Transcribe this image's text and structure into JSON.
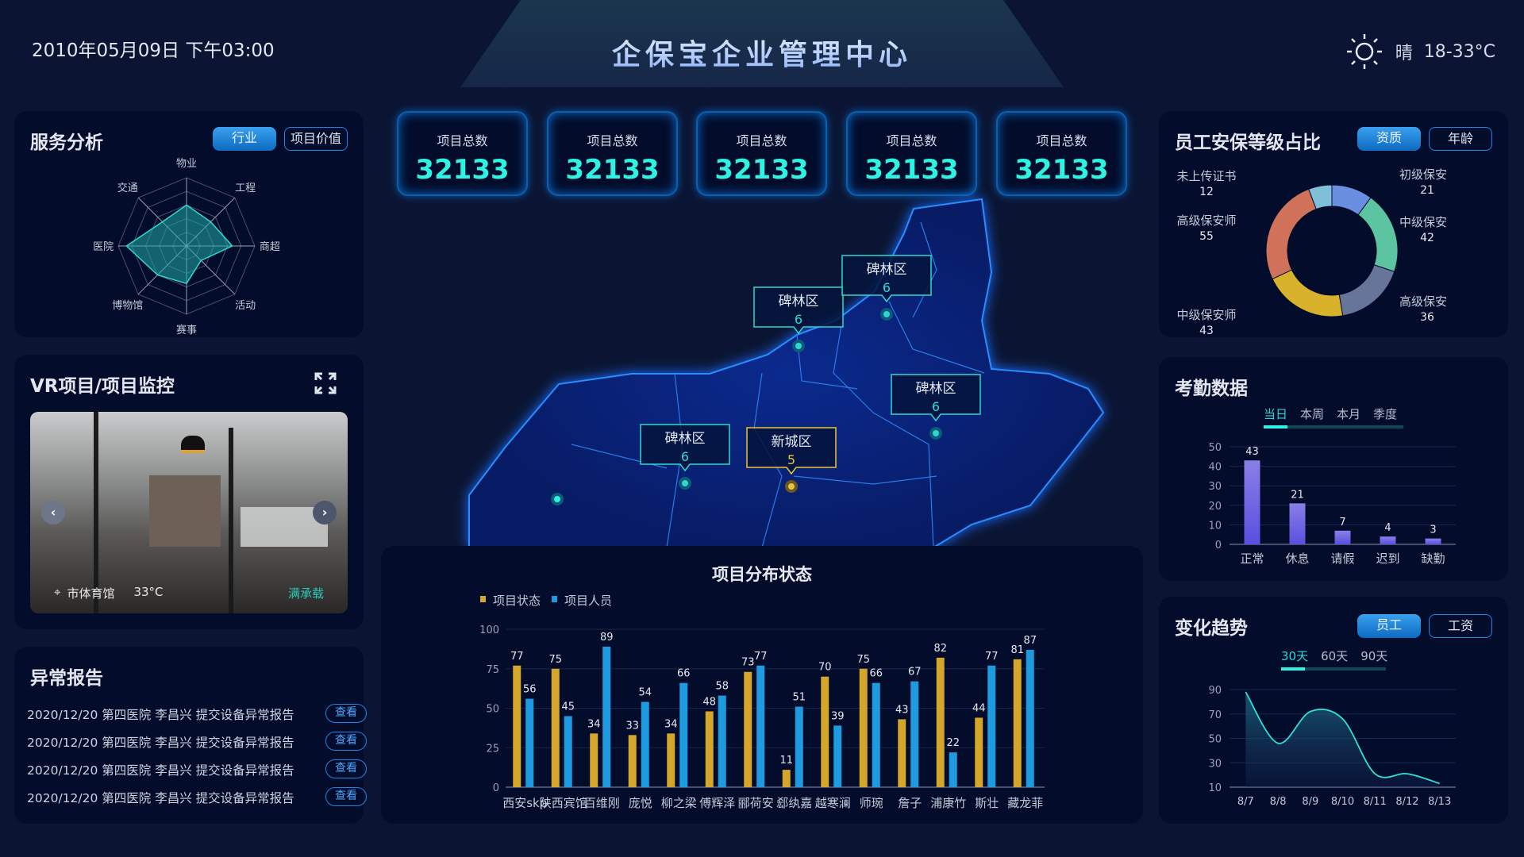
{
  "header": {
    "datetime": "2010年05月09日   下午03:00",
    "title": "企保宝企业管理中心",
    "weather": {
      "icon": "sun-icon",
      "condition": "晴",
      "temp": "18-33°C"
    }
  },
  "service": {
    "title": "服务分析",
    "btn_industry": "行业",
    "btn_value": "项目价值",
    "radar": {
      "axes": [
        "物业",
        "工程",
        "商超",
        "活动",
        "赛事",
        "博物馆",
        "医院",
        "交通"
      ],
      "values": [
        60,
        50,
        67,
        30,
        55,
        60,
        88,
        50
      ],
      "max": 100
    }
  },
  "vr": {
    "title": "VR项目/项目监控",
    "fullscreen_icon": "expand-icon",
    "location": "市体育馆",
    "temp": "33°C",
    "status": "满承载"
  },
  "report": {
    "title": "异常报告",
    "view_label": "查看",
    "items": [
      "2020/12/20 第四医院 李昌兴 提交设备异常报告",
      "2020/12/20 第四医院 李昌兴 提交设备异常报告",
      "2020/12/20 第四医院 李昌兴 提交设备异常报告",
      "2020/12/20 第四医院 李昌兴 提交设备异常报告"
    ]
  },
  "stats": [
    {
      "label": "项目总数",
      "value": "32133"
    },
    {
      "label": "项目总数",
      "value": "32133"
    },
    {
      "label": "项目总数",
      "value": "32133"
    },
    {
      "label": "项目总数",
      "value": "32133"
    },
    {
      "label": "项目总数",
      "value": "32133"
    }
  ],
  "map": {
    "markers": [
      {
        "name": "碑林区",
        "value": "6"
      },
      {
        "name": "碑林区",
        "value": "6"
      },
      {
        "name": "碑林区",
        "value": "6"
      },
      {
        "name": "碑林区",
        "value": "6"
      },
      {
        "name": "新城区",
        "value": "5",
        "highlight": true
      }
    ]
  },
  "colors": {
    "accent": "#2ef2e2",
    "primary": "#1b86e6",
    "gold": "#d4a72c",
    "blue": "#1e9be0",
    "purple": "#6a5fe0"
  },
  "chart_data": [
    {
      "type": "bar",
      "title": "项目分布状态",
      "categories": [
        "西安skp",
        "陕西宾馆",
        "百维刚",
        "庞悦",
        "柳之梁",
        "傅辉泽",
        "郦荷安",
        "郄纨嘉",
        "越寒澜",
        "师琬",
        "詹子",
        "浦康竹",
        "斯壮",
        "藏龙菲"
      ],
      "series": [
        {
          "name": "项目状态",
          "values": [
            77,
            75,
            34,
            33,
            34,
            48,
            73,
            11,
            70,
            75,
            43,
            82,
            44,
            81
          ]
        },
        {
          "name": "项目人员",
          "values": [
            56,
            45,
            89,
            54,
            66,
            58,
            77,
            51,
            39,
            66,
            67,
            22,
            77,
            87
          ]
        }
      ],
      "ylim": [
        0,
        100
      ],
      "yticks": [
        0,
        25,
        50,
        75,
        100
      ],
      "legend": "top-left"
    },
    {
      "type": "pie",
      "title": "员工安保等级占比",
      "buttons": [
        "资质",
        "年龄"
      ],
      "slices": [
        {
          "label": "初级保安",
          "value": 21,
          "color": "#6a8fe0"
        },
        {
          "label": "中级保安",
          "value": 42,
          "color": "#5cc4a0"
        },
        {
          "label": "高级保安",
          "value": 36,
          "color": "#67759a"
        },
        {
          "label": "中级保安师",
          "value": 43,
          "color": "#d8b22a"
        },
        {
          "label": "高级保安师",
          "value": 55,
          "color": "#d0715a"
        },
        {
          "label": "未上传证书",
          "value": 12,
          "color": "#7fbfd8"
        }
      ]
    },
    {
      "type": "bar",
      "title": "考勤数据",
      "tabs": [
        "当日",
        "本周",
        "本月",
        "季度"
      ],
      "active_tab": "当日",
      "categories": [
        "正常",
        "休息",
        "请假",
        "迟到",
        "缺勤"
      ],
      "values": [
        43,
        21,
        7,
        4,
        3
      ],
      "ylim": [
        0,
        50
      ],
      "yticks": [
        0,
        10,
        20,
        30,
        40,
        50
      ]
    },
    {
      "type": "area",
      "title": "变化趋势",
      "buttons": [
        "员工",
        "工资"
      ],
      "tabs": [
        "30天",
        "60天",
        "90天"
      ],
      "active_tab": "30天",
      "categories": [
        "8/7",
        "8/8",
        "8/9",
        "8/10",
        "8/11",
        "8/12",
        "8/13"
      ],
      "values": [
        88,
        46,
        72,
        66,
        21,
        21,
        13
      ],
      "ylim": [
        10,
        90
      ],
      "yticks": [
        10,
        30,
        50,
        70,
        90
      ]
    }
  ]
}
